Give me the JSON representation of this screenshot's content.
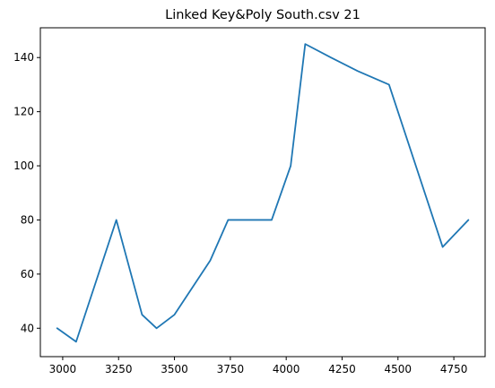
{
  "chart_data": {
    "type": "line",
    "title": "Linked Key&Poly South.csv 21",
    "xlabel": "",
    "ylabel": "",
    "xlim": [
      2900,
      4890
    ],
    "ylim": [
      29.5,
      151
    ],
    "x_ticks": [
      3000,
      3250,
      3500,
      3750,
      4000,
      4250,
      4500,
      4750
    ],
    "y_ticks": [
      40,
      60,
      80,
      100,
      120,
      140
    ],
    "grid": false,
    "legend": "none",
    "series": [
      {
        "color": "#1f77b4",
        "x": [
          2975,
          3060,
          3240,
          3355,
          3420,
          3500,
          3660,
          3740,
          3935,
          4020,
          4085,
          4200,
          4320,
          4460,
          4700,
          4815
        ],
        "y": [
          40,
          35,
          80,
          45,
          40,
          45,
          65,
          80,
          80,
          100,
          145,
          140,
          135,
          130,
          70,
          80
        ]
      }
    ]
  }
}
